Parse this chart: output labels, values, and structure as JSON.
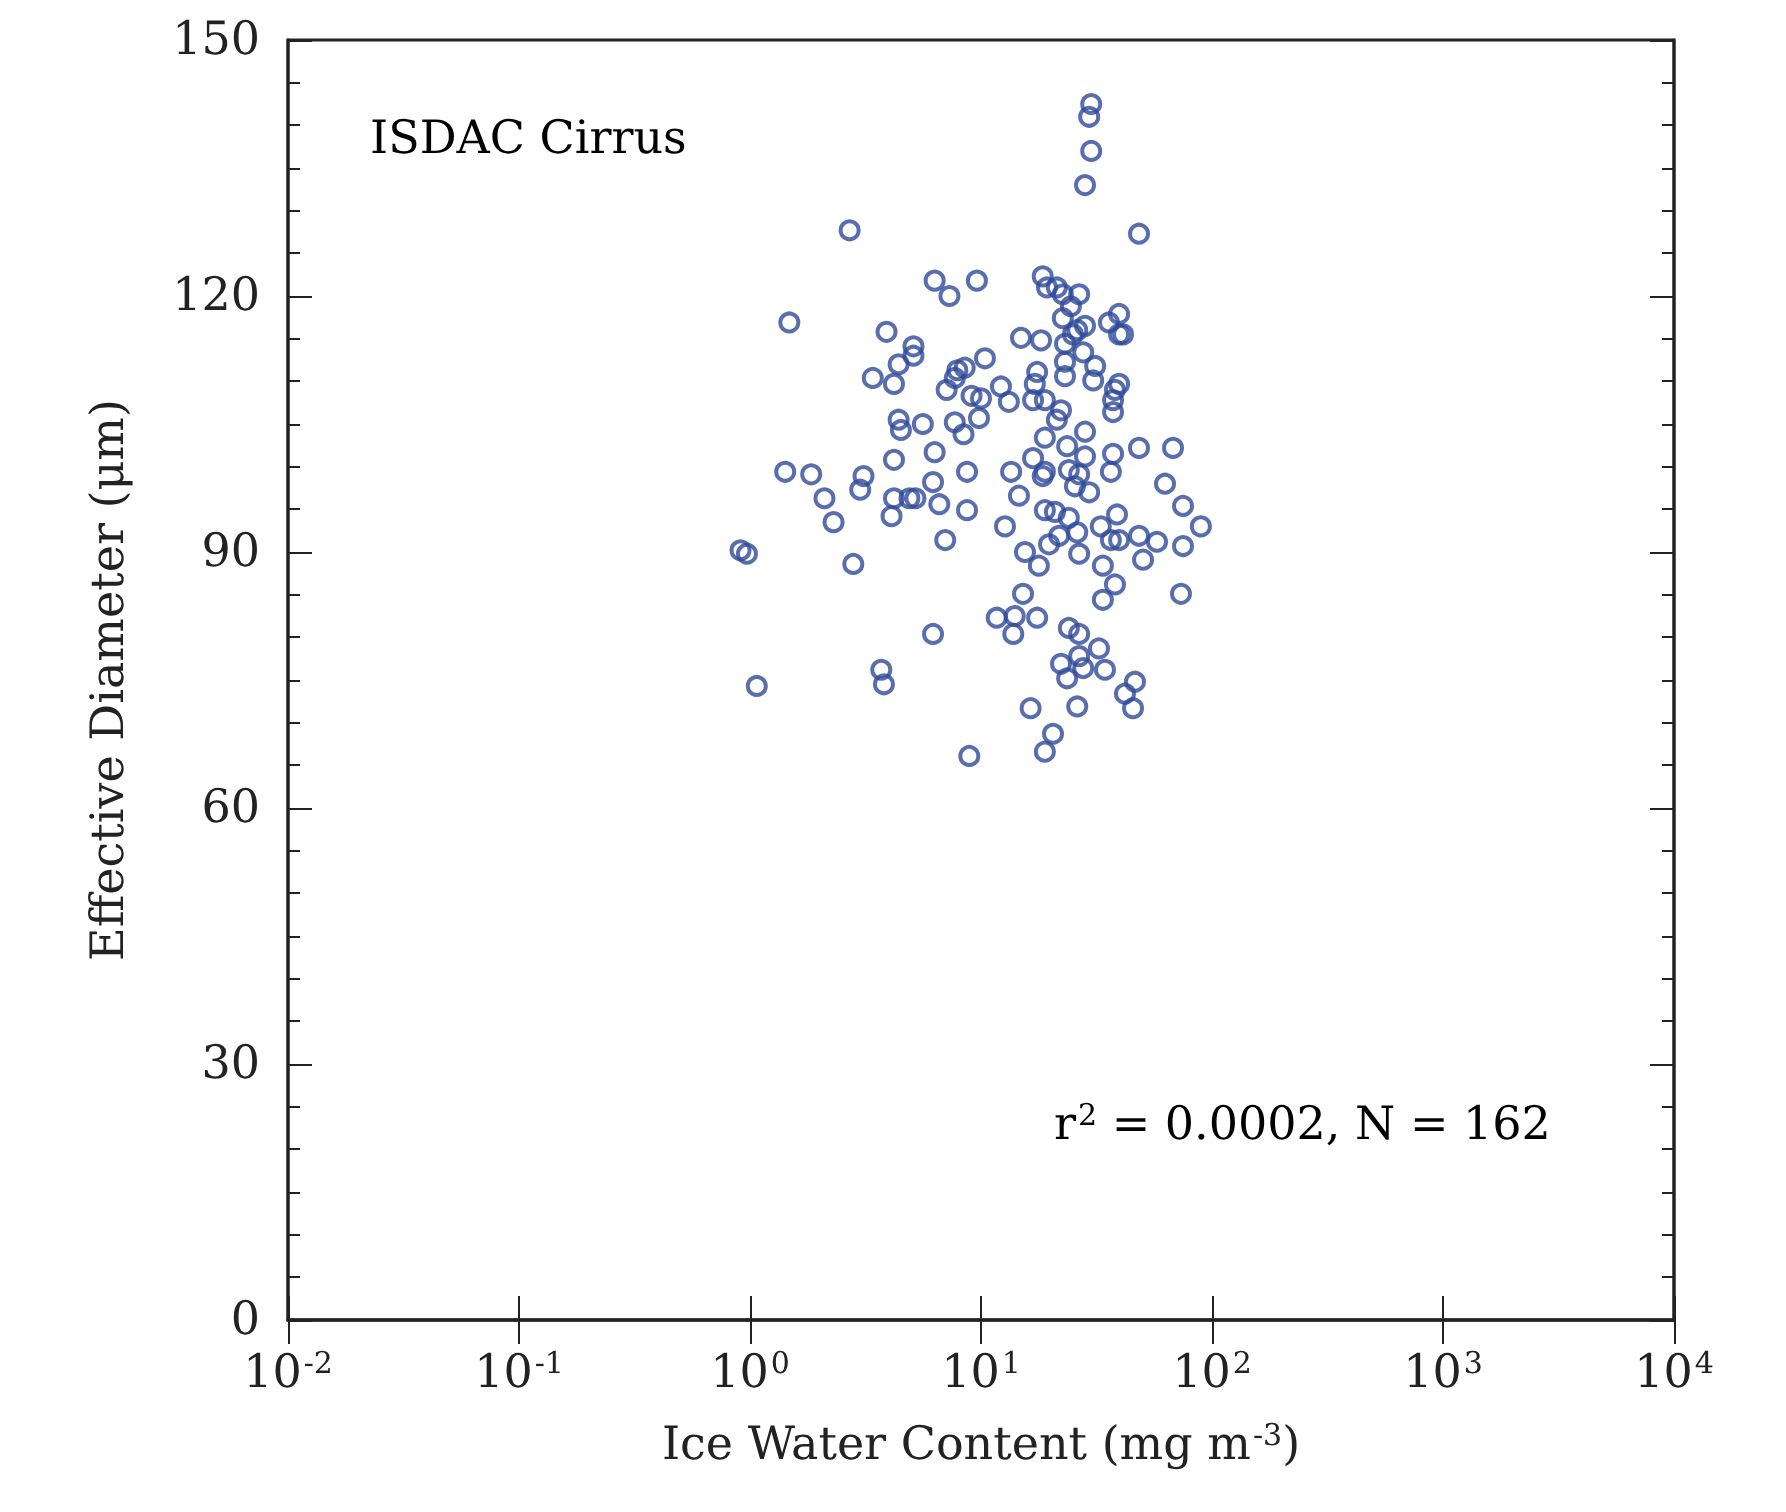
{
  "chart_data": {
    "type": "scatter",
    "xlabel": "Ice Water Content (mg m$^{-3}$)",
    "ylabel": "Effective Diameter (μm)",
    "annotations": [
      "ISDAC Cirrus",
      "r$^{2}$ = 0.0002, N = 162"
    ],
    "log": "x",
    "xlim": [
      0.01,
      10000
    ],
    "xticks": [
      {
        "value": 0.01,
        "label": "10$^{-2}$"
      },
      {
        "value": 0.1,
        "label": "10$^{-1}$"
      },
      {
        "value": 1,
        "label": "10$^{0}$"
      },
      {
        "value": 10,
        "label": "10$^{1}$"
      },
      {
        "value": 100,
        "label": "10$^{2}$"
      },
      {
        "value": 1000,
        "label": "10$^{3}$"
      },
      {
        "value": 10000,
        "label": "10$^{4}$"
      }
    ],
    "ylim": [
      0,
      150
    ],
    "yticks": [
      0,
      30,
      60,
      90,
      120,
      150
    ],
    "grid": false,
    "marker": "circle",
    "series": [
      {
        "color": "#2e4a9a",
        "x": [
          30,
          29.4,
          30,
          28.2,
          2.7,
          48.3,
          6.3,
          9.6,
          7.3,
          18.5,
          19.3,
          21.3,
          22.6,
          26.6,
          24.5,
          1.48,
          22.6,
          3.9,
          5.1,
          5.1,
          4.4,
          10.4,
          14.9,
          18.2,
          23.1,
          26.1,
          28.2,
          25,
          27.7,
          35.8,
          39.6,
          39.6,
          41.2,
          23.1,
          31.2,
          3.4,
          4.2,
          7.9,
          8.5,
          7.7,
          7.1,
          9.1,
          10,
          12.2,
          13.2,
          17.5,
          17.1,
          16.8,
          18.9,
          23.1,
          30.6,
          39.6,
          38,
          37.3,
          37.3,
          22.2,
          21.3,
          4.4,
          4.5,
          5.6,
          7.7,
          9.8,
          8.4,
          18.9,
          23.6,
          28.2,
          37.3,
          48.3,
          67.8,
          6.3,
          4.2,
          16.8,
          28.2,
          24,
          1.42,
          1.84,
          3.1,
          3.0,
          2.1,
          6.2,
          8.7,
          13.5,
          18.9,
          26.6,
          25.5,
          29.4,
          36.5,
          62.6,
          4.2,
          4.9,
          5.2,
          6.6,
          14.6,
          18.5,
          4.1,
          8.7,
          18.9,
          20.9,
          24,
          26.1,
          33,
          38.8,
          74.9,
          2.3,
          12.7,
          89.5,
          7.0,
          21.8,
          19.7,
          36.5,
          39.6,
          48.3,
          57.8,
          74.9,
          0.91,
          0.97,
          15.5,
          17.8,
          26.6,
          33.7,
          50.3,
          2.8,
          38,
          15.2,
          73.4,
          33.7,
          11.7,
          14,
          13.8,
          17.5,
          6.2,
          24,
          26.6,
          32.4,
          26.6,
          22.2,
          27.7,
          23.6,
          34.4,
          46.4,
          42,
          45.5,
          3.7,
          3.8,
          1.07,
          16.4,
          26.1,
          20.5,
          18.9,
          8.9
        ],
        "values": [
          142.5,
          141,
          137,
          133,
          127.7,
          127.3,
          121.8,
          121.8,
          120,
          122.3,
          121,
          121,
          120.2,
          120.2,
          118.8,
          116.9,
          117.4,
          115.8,
          114.1,
          113,
          112,
          112.7,
          115.1,
          114.8,
          114.4,
          116,
          116.5,
          115.5,
          113.4,
          116.9,
          117.9,
          115.5,
          115.5,
          112.3,
          111.8,
          110.4,
          109.7,
          111.3,
          111.6,
          110.4,
          109,
          108.3,
          108,
          109.4,
          107.6,
          111.1,
          109.7,
          107.8,
          107.8,
          110.6,
          110.1,
          109.7,
          109,
          107.8,
          106.4,
          106.6,
          105.5,
          105.5,
          104.3,
          105,
          105.2,
          105.7,
          103.8,
          103.4,
          102.4,
          104.1,
          101.5,
          102.2,
          102.2,
          101.7,
          100.8,
          101,
          101.2,
          99.6,
          99.4,
          99.1,
          98.9,
          97.3,
          96.3,
          98.2,
          99.4,
          99.4,
          99.4,
          99.1,
          97.7,
          97,
          99.4,
          98,
          96.3,
          96.3,
          96.3,
          95.6,
          96.6,
          98.9,
          94.2,
          94.9,
          94.9,
          94.7,
          94,
          92.3,
          93,
          94.4,
          95.4,
          93.5,
          93,
          93,
          91.4,
          91.9,
          90.9,
          91.4,
          91.4,
          91.9,
          91.2,
          90.7,
          90.2,
          89.8,
          90,
          88.4,
          89.8,
          88.4,
          89.1,
          88.6,
          86.2,
          85.1,
          85.1,
          84.4,
          82.3,
          82.5,
          80.4,
          82.3,
          80.4,
          81.1,
          80.4,
          78.7,
          77.8,
          76.9,
          76.4,
          75.2,
          76.2,
          74.8,
          73.4,
          71.7,
          76.2,
          74.5,
          74.3,
          71.7,
          71.9,
          68.7,
          66.6,
          66.1
        ]
      }
    ]
  }
}
